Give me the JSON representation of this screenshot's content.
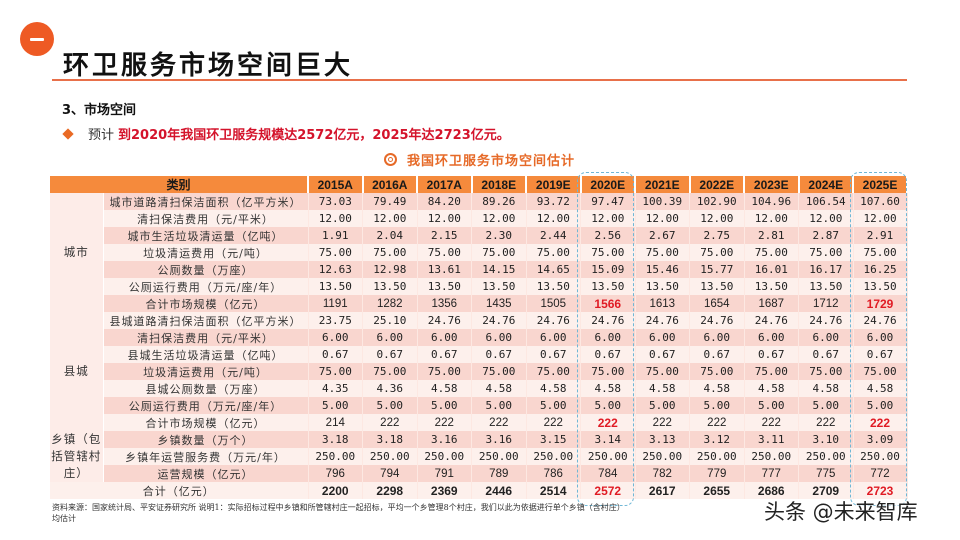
{
  "header": {
    "section_number": "一",
    "title": "环卫服务市场空间巨大"
  },
  "section": {
    "heading": "3、市场空间",
    "bullet_prefix": "预计",
    "bullet_highlight": "到2020年我国环卫服务规模达2572亿元，2025年达2723亿元。"
  },
  "table": {
    "caption": "我国环卫服务市场空间估计",
    "category_header": "类别",
    "years": [
      "2015A",
      "2016A",
      "2017A",
      "2018E",
      "2019E",
      "2020E",
      "2021E",
      "2022E",
      "2023E",
      "2024E",
      "2025E"
    ],
    "groups": [
      {
        "name": "城市",
        "rows": [
          {
            "label": "城市道路清扫保洁面积（亿平方米）",
            "values": [
              "73.03",
              "79.49",
              "84.20",
              "89.26",
              "93.72",
              "97.47",
              "100.39",
              "102.90",
              "104.96",
              "106.54",
              "107.60"
            ]
          },
          {
            "label": "清扫保洁费用（元/平米）",
            "values": [
              "12.00",
              "12.00",
              "12.00",
              "12.00",
              "12.00",
              "12.00",
              "12.00",
              "12.00",
              "12.00",
              "12.00",
              "12.00"
            ]
          },
          {
            "label": "城市生活垃圾清运量（亿吨）",
            "values": [
              "1.91",
              "2.04",
              "2.15",
              "2.30",
              "2.44",
              "2.56",
              "2.67",
              "2.75",
              "2.81",
              "2.87",
              "2.91"
            ]
          },
          {
            "label": "垃圾清运费用（元/吨）",
            "values": [
              "75.00",
              "75.00",
              "75.00",
              "75.00",
              "75.00",
              "75.00",
              "75.00",
              "75.00",
              "75.00",
              "75.00",
              "75.00"
            ]
          },
          {
            "label": "公厕数量（万座）",
            "values": [
              "12.63",
              "12.98",
              "13.61",
              "14.15",
              "14.65",
              "15.09",
              "15.46",
              "15.77",
              "16.01",
              "16.17",
              "16.25"
            ]
          },
          {
            "label": "公厕运行费用（万元/座/年）",
            "values": [
              "13.50",
              "13.50",
              "13.50",
              "13.50",
              "13.50",
              "13.50",
              "13.50",
              "13.50",
              "13.50",
              "13.50",
              "13.50"
            ]
          },
          {
            "label": "合计市场规模（亿元）",
            "values": [
              "1191",
              "1282",
              "1356",
              "1435",
              "1505",
              "1566",
              "1613",
              "1654",
              "1687",
              "1712",
              "1729"
            ]
          }
        ]
      },
      {
        "name": "县城",
        "rows": [
          {
            "label": "县城道路清扫保洁面积（亿平方米）",
            "values": [
              "23.75",
              "25.10",
              "24.76",
              "24.76",
              "24.76",
              "24.76",
              "24.76",
              "24.76",
              "24.76",
              "24.76",
              "24.76"
            ]
          },
          {
            "label": "清扫保洁费用（元/平米）",
            "values": [
              "6.00",
              "6.00",
              "6.00",
              "6.00",
              "6.00",
              "6.00",
              "6.00",
              "6.00",
              "6.00",
              "6.00",
              "6.00"
            ]
          },
          {
            "label": "县城生活垃圾清运量（亿吨）",
            "values": [
              "0.67",
              "0.67",
              "0.67",
              "0.67",
              "0.67",
              "0.67",
              "0.67",
              "0.67",
              "0.67",
              "0.67",
              "0.67"
            ]
          },
          {
            "label": "垃圾清运费用（元/吨）",
            "values": [
              "75.00",
              "75.00",
              "75.00",
              "75.00",
              "75.00",
              "75.00",
              "75.00",
              "75.00",
              "75.00",
              "75.00",
              "75.00"
            ]
          },
          {
            "label": "县城公厕数量（万座）",
            "values": [
              "4.35",
              "4.36",
              "4.58",
              "4.58",
              "4.58",
              "4.58",
              "4.58",
              "4.58",
              "4.58",
              "4.58",
              "4.58"
            ]
          },
          {
            "label": "公厕运行费用（万元/座/年）",
            "values": [
              "5.00",
              "5.00",
              "5.00",
              "5.00",
              "5.00",
              "5.00",
              "5.00",
              "5.00",
              "5.00",
              "5.00",
              "5.00"
            ]
          },
          {
            "label": "合计市场规模（亿元）",
            "values": [
              "214",
              "222",
              "222",
              "222",
              "222",
              "222",
              "222",
              "222",
              "222",
              "222",
              "222"
            ]
          }
        ]
      },
      {
        "name": "乡镇（包括管辖村庄）",
        "rows": [
          {
            "label": "乡镇数量（万个）",
            "values": [
              "3.18",
              "3.18",
              "3.16",
              "3.16",
              "3.15",
              "3.14",
              "3.13",
              "3.12",
              "3.11",
              "3.10",
              "3.09"
            ]
          },
          {
            "label": "乡镇年运营服务费（万元/年）",
            "values": [
              "250.00",
              "250.00",
              "250.00",
              "250.00",
              "250.00",
              "250.00",
              "250.00",
              "250.00",
              "250.00",
              "250.00",
              "250.00"
            ]
          },
          {
            "label": "运营规模（亿元）",
            "values": [
              "796",
              "794",
              "791",
              "789",
              "786",
              "784",
              "782",
              "779",
              "777",
              "775",
              "772"
            ]
          }
        ]
      }
    ],
    "total": {
      "label": "合计（亿元）",
      "values": [
        "2200",
        "2298",
        "2369",
        "2446",
        "2514",
        "2572",
        "2617",
        "2655",
        "2686",
        "2709",
        "2723"
      ]
    },
    "highlight_years": [
      "2020E",
      "2025E"
    ]
  },
  "footnote": {
    "line1": "资料来源：国家统计局、平安证券研究所  说明1：实际招标过程中乡镇和所管辖村庄一起招标，平均一个乡管理8个村庄，我们以此为依据进行单个乡镇（含村庄）",
    "line2": "均估计"
  },
  "watermark": "头条 @未来智库",
  "colors": {
    "accent_orange": "#ee5a24",
    "header_orange": "#f58a3c",
    "highlight_red": "#e01b24",
    "row_rose": "#f9d6cf",
    "row_pale": "#fdf0ec",
    "callout_dash": "#6fb7d6"
  }
}
